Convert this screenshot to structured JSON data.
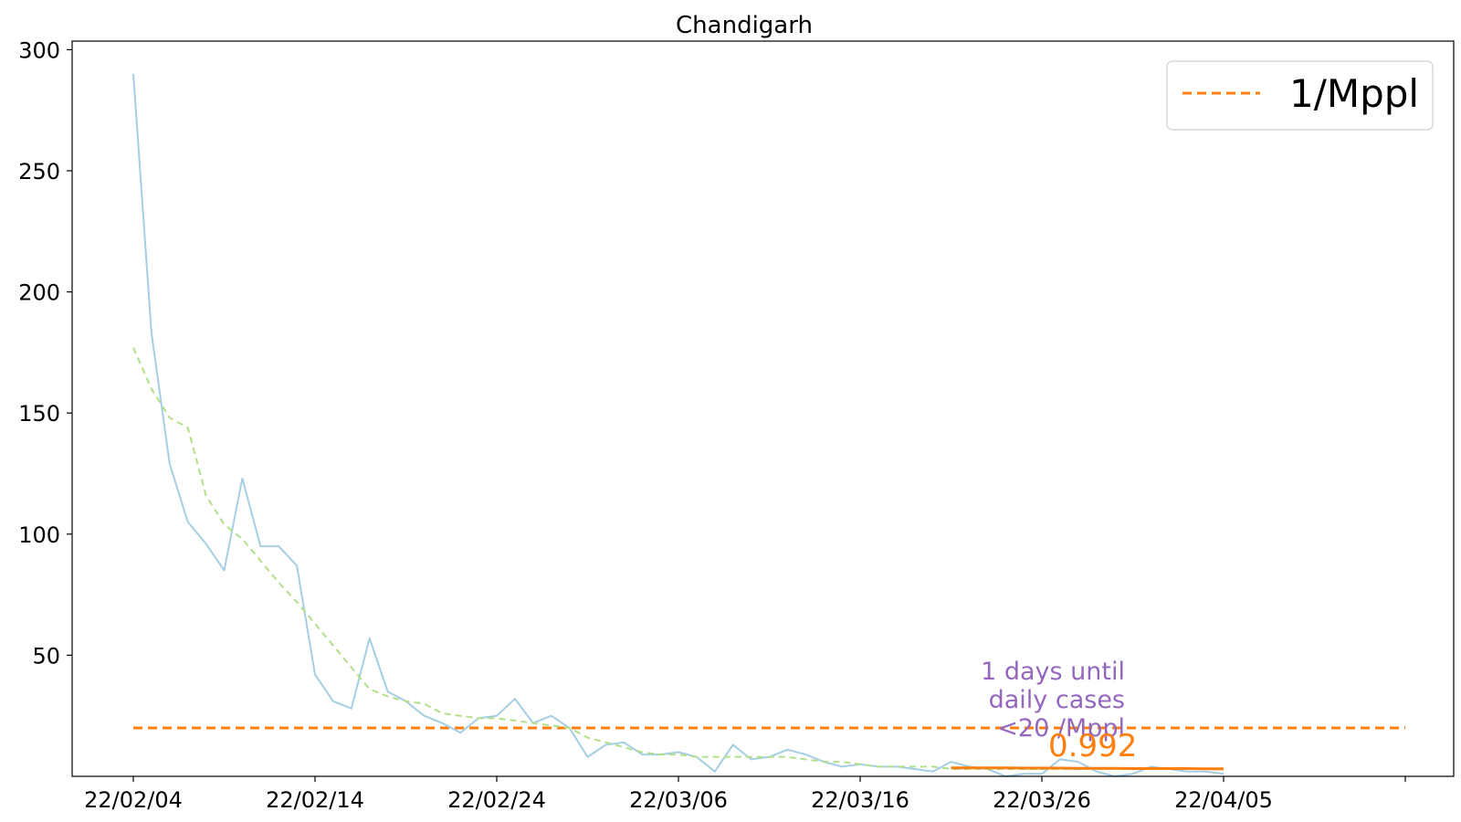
{
  "chart_data": {
    "type": "line",
    "title": "Chandigarh",
    "xlabel": "",
    "ylabel": "",
    "x_start_date": "2022-02-04",
    "x_tick_labels": [
      "22/02/04",
      "22/02/14",
      "22/02/24",
      "22/03/06",
      "22/03/16",
      "22/03/26",
      "22/04/05",
      ""
    ],
    "ylim": [
      0,
      305
    ],
    "y_ticks": [
      50,
      100,
      150,
      200,
      250,
      300
    ],
    "grid": false,
    "legend": {
      "placement": "top-right",
      "entries": [
        "1/Mppl"
      ]
    },
    "series": [
      {
        "name": "",
        "style": "solid",
        "color": "#a6cee3",
        "values": [
          290,
          183,
          129,
          105,
          96,
          85,
          123,
          95,
          95,
          87,
          42,
          31,
          28,
          57,
          35,
          31,
          25,
          22,
          18,
          24,
          25,
          32,
          22,
          25,
          20,
          8,
          13,
          14,
          9,
          9,
          10,
          8,
          2,
          13,
          7,
          8,
          11,
          9,
          6,
          4,
          5,
          4,
          4,
          3,
          2,
          6,
          4,
          3,
          0,
          1,
          1,
          7,
          6,
          2,
          0,
          1,
          4,
          3,
          2,
          2,
          1
        ]
      },
      {
        "name": "",
        "style": "dashed",
        "color": "#b2df8a",
        "values": [
          177,
          160,
          148,
          144,
          116,
          104,
          98,
          89,
          80,
          72,
          63,
          54,
          45,
          36,
          33,
          31,
          30,
          26,
          25,
          24,
          24,
          23,
          22,
          21,
          20,
          16,
          14,
          12,
          10,
          9,
          9,
          8,
          8,
          8,
          8,
          8,
          8,
          7,
          6,
          6,
          5,
          4,
          4,
          4,
          4,
          3,
          3,
          3,
          3,
          3,
          3,
          3,
          3,
          3,
          3,
          3,
          3,
          3,
          3,
          3,
          3
        ]
      },
      {
        "name": "",
        "style": "solid",
        "color": "#ff7f0e",
        "x_start_index": 45,
        "values": [
          3.5,
          3.5,
          3.5,
          3.5,
          3.4,
          3.4,
          3.4,
          3.3,
          3.3,
          3.3,
          3.2,
          3.2,
          3.2,
          3.2,
          3.1,
          3.1
        ]
      }
    ],
    "reference_line": {
      "label": "1/Mppl",
      "value": 20,
      "style": "dashed",
      "color": "#ff7f0e",
      "x_end_index": 70
    },
    "annotations": {
      "days_text": [
        "1 days until",
        "daily cases",
        "<20 /Mppl"
      ],
      "days_color": "#9467bd",
      "end_value_text": "0.992",
      "end_value_color": "#ff7f0e"
    }
  }
}
